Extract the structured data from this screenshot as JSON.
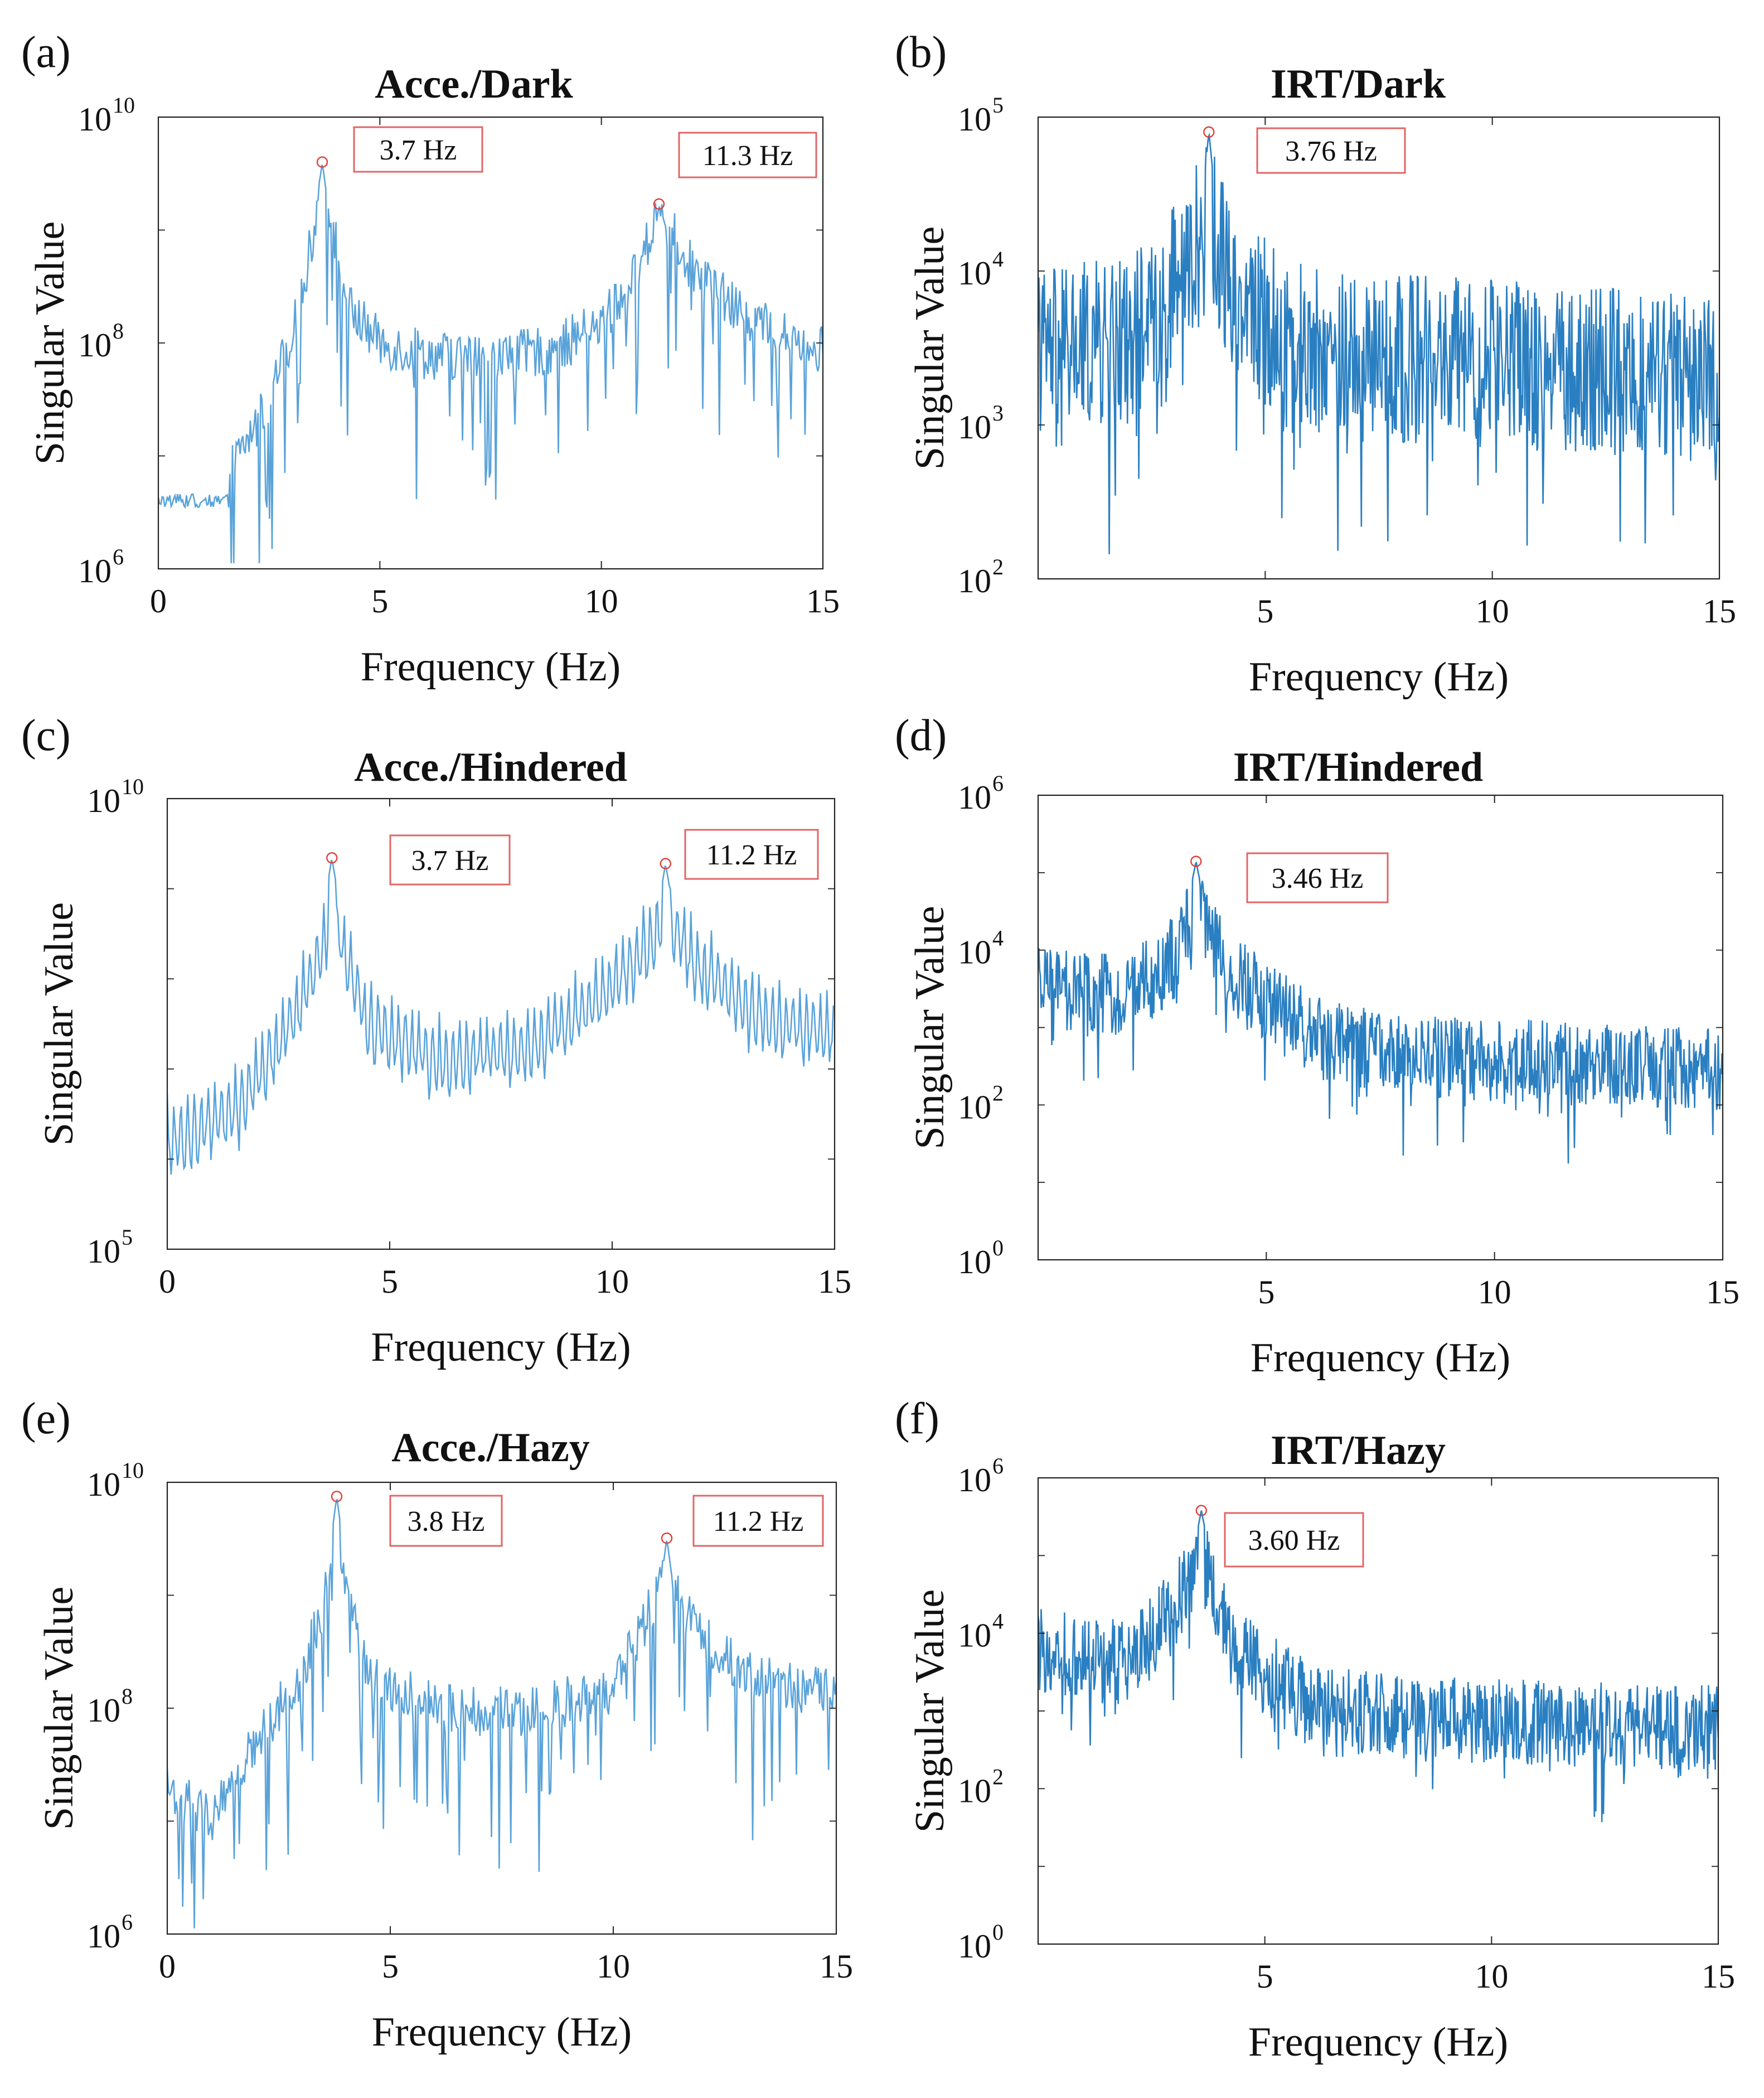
{
  "chart_data": [
    {
      "type": "line",
      "panel_label": "(a)",
      "title": "Acce./Dark",
      "xlabel": "Frequency (Hz)",
      "ylabel": "Singular Value",
      "xlim": [
        0,
        15
      ],
      "ylim": [
        1000000,
        10000000000
      ],
      "yscale": "log",
      "x_ticks": [
        "0",
        "5",
        "10",
        "15"
      ],
      "y_ticks": [
        {
          "base": "10",
          "exp": "6"
        },
        {
          "base": "10",
          "exp": "8"
        },
        {
          "base": "10",
          "exp": "10"
        }
      ],
      "series_color": "#5aa3d9",
      "noise": "fine",
      "floor_at_zero": 4000000,
      "baseline": [
        [
          0,
          5000000
        ],
        [
          1.5,
          6000000
        ],
        [
          2.5,
          30000000
        ],
        [
          3.2,
          200000000
        ],
        [
          3.7,
          3000000000
        ],
        [
          4.3,
          200000000
        ],
        [
          5,
          100000000
        ],
        [
          6,
          80000000
        ],
        [
          7.5,
          70000000
        ],
        [
          9,
          90000000
        ],
        [
          10,
          150000000
        ],
        [
          10.8,
          400000000
        ],
        [
          11.3,
          1500000000
        ],
        [
          12,
          500000000
        ],
        [
          13,
          200000000
        ],
        [
          14,
          120000000
        ],
        [
          15,
          100000000
        ]
      ],
      "peaks": [
        {
          "x": 3.7,
          "y": 4000000000,
          "label": "3.7 Hz"
        },
        {
          "x": 11.3,
          "y": 1700000000,
          "label": "11.3 Hz"
        }
      ]
    },
    {
      "type": "line",
      "panel_label": "(b)",
      "title": "IRT/Dark",
      "xlabel": "Frequency (Hz)",
      "ylabel": "Singular Value",
      "xlim": [
        0,
        15
      ],
      "ylim": [
        100,
        100000
      ],
      "yscale": "log",
      "x_ticks": [
        "5",
        "10",
        "15"
      ],
      "y_ticks": [
        {
          "base": "10",
          "exp": "2"
        },
        {
          "base": "10",
          "exp": "3"
        },
        {
          "base": "10",
          "exp": "4"
        },
        {
          "base": "10",
          "exp": "5"
        }
      ],
      "series_color": "#2a7fc1",
      "noise": "dense",
      "baseline": [
        [
          0,
          3000
        ],
        [
          2,
          3500
        ],
        [
          3,
          8000
        ],
        [
          3.76,
          20000
        ],
        [
          4.5,
          6000
        ],
        [
          6,
          3000
        ],
        [
          10,
          2500
        ],
        [
          15,
          2000
        ]
      ],
      "peaks": [
        {
          "x": 3.76,
          "y": 80000,
          "label": "3.76 Hz"
        }
      ]
    },
    {
      "type": "line",
      "panel_label": "(c)",
      "title": "Acce./Hindered",
      "xlabel": "Frequency (Hz)",
      "ylabel": "Singular Value",
      "xlim": [
        0,
        15
      ],
      "ylim": [
        100000,
        10000000000
      ],
      "yscale": "log",
      "x_ticks": [
        "0",
        "5",
        "10",
        "15"
      ],
      "y_ticks": [
        {
          "base": "10",
          "exp": "5"
        },
        {
          "base": "10",
          "exp": "10"
        }
      ],
      "series_color": "#5aa3d9",
      "noise": "comb",
      "baseline": [
        [
          0,
          5000000
        ],
        [
          1.5,
          10000000
        ],
        [
          2.5,
          60000000
        ],
        [
          3.2,
          300000000
        ],
        [
          3.7,
          1500000000
        ],
        [
          4.5,
          100000000
        ],
        [
          6,
          40000000
        ],
        [
          8,
          50000000
        ],
        [
          9.5,
          150000000
        ],
        [
          10.5,
          500000000
        ],
        [
          11.2,
          1500000000
        ],
        [
          12,
          400000000
        ],
        [
          13,
          150000000
        ],
        [
          14,
          90000000
        ],
        [
          15,
          80000000
        ]
      ],
      "peaks": [
        {
          "x": 3.7,
          "y": 2200000000,
          "label": "3.7 Hz"
        },
        {
          "x": 11.2,
          "y": 1900000000,
          "label": "11.2 Hz"
        }
      ]
    },
    {
      "type": "line",
      "panel_label": "(d)",
      "title": "IRT/Hindered",
      "xlabel": "Frequency (Hz)",
      "ylabel": "Singular Value",
      "xlim": [
        0,
        15
      ],
      "ylim": [
        1,
        1000000
      ],
      "yscale": "log",
      "x_ticks": [
        "5",
        "10",
        "15"
      ],
      "y_ticks": [
        {
          "base": "10",
          "exp": "0"
        },
        {
          "base": "10",
          "exp": "2"
        },
        {
          "base": "10",
          "exp": "4"
        },
        {
          "base": "10",
          "exp": "6"
        }
      ],
      "series_color": "#2a7fc1",
      "noise": "dense",
      "baseline": [
        [
          0,
          3000
        ],
        [
          2,
          2500
        ],
        [
          3,
          8000
        ],
        [
          3.46,
          40000
        ],
        [
          4.2,
          5000
        ],
        [
          6,
          800
        ],
        [
          8,
          400
        ],
        [
          15,
          300
        ]
      ],
      "peaks": [
        {
          "x": 3.46,
          "y": 140000,
          "label": "3.46 Hz"
        }
      ]
    },
    {
      "type": "line",
      "panel_label": "(e)",
      "title": "Acce./Hazy",
      "xlabel": "Frequency (Hz)",
      "ylabel": "Singular Value",
      "xlim": [
        0,
        15
      ],
      "ylim": [
        1000000,
        10000000000
      ],
      "yscale": "log",
      "x_ticks": [
        "0",
        "5",
        "10",
        "15"
      ],
      "y_ticks": [
        {
          "base": "10",
          "exp": "6"
        },
        {
          "base": "10",
          "exp": "8"
        },
        {
          "base": "10",
          "exp": "10"
        }
      ],
      "series_color": "#5aa3d9",
      "noise": "fine",
      "baseline": [
        [
          0,
          20000000
        ],
        [
          1,
          10000000
        ],
        [
          2,
          50000000
        ],
        [
          3,
          200000000
        ],
        [
          3.8,
          2000000000
        ],
        [
          4.5,
          200000000
        ],
        [
          6,
          100000000
        ],
        [
          8,
          90000000
        ],
        [
          10,
          150000000
        ],
        [
          11.2,
          1500000000
        ],
        [
          12,
          400000000
        ],
        [
          13,
          200000000
        ],
        [
          14,
          150000000
        ],
        [
          15,
          150000000
        ]
      ],
      "peaks": [
        {
          "x": 3.8,
          "y": 7500000000,
          "label": "3.8 Hz"
        },
        {
          "x": 11.2,
          "y": 3200000000,
          "label": "11.2 Hz"
        }
      ]
    },
    {
      "type": "line",
      "panel_label": "(f)",
      "title": "IRT/Hazy",
      "xlabel": "Frequency (Hz)",
      "ylabel": "Singular Value",
      "xlim": [
        0,
        15
      ],
      "ylim": [
        1,
        1000000
      ],
      "yscale": "log",
      "x_ticks": [
        "5",
        "10",
        "15"
      ],
      "y_ticks": [
        {
          "base": "10",
          "exp": "0"
        },
        {
          "base": "10",
          "exp": "2"
        },
        {
          "base": "10",
          "exp": "4"
        },
        {
          "base": "10",
          "exp": "6"
        }
      ],
      "series_color": "#2a7fc1",
      "noise": "dense",
      "baseline": [
        [
          0,
          6000
        ],
        [
          2,
          4000
        ],
        [
          3,
          20000
        ],
        [
          3.6,
          100000
        ],
        [
          4.3,
          6000
        ],
        [
          6,
          1200
        ],
        [
          8,
          800
        ],
        [
          15,
          600
        ]
      ],
      "peaks": [
        {
          "x": 3.6,
          "y": 380000,
          "label": "3.60 Hz"
        }
      ]
    }
  ]
}
